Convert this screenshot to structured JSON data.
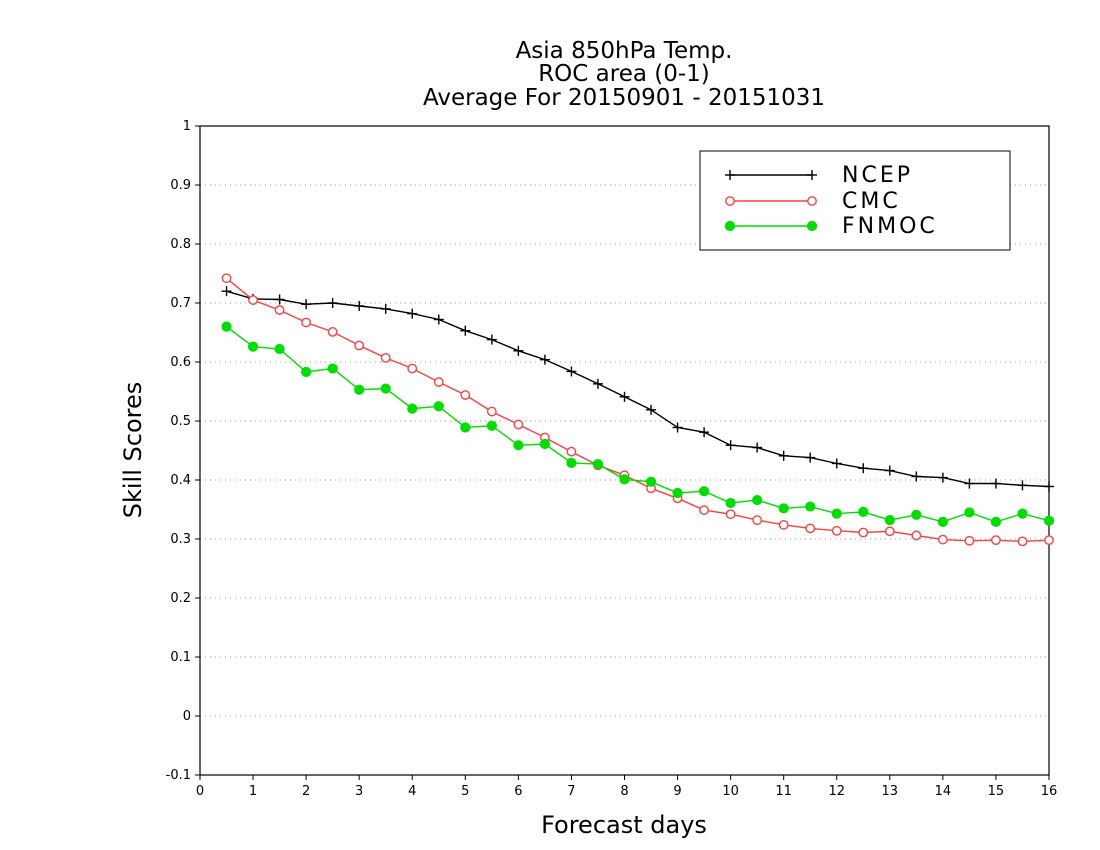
{
  "chart_data": {
    "type": "line",
    "title": [
      "Asia 850hPa Temp.",
      "ROC area (0-1)",
      "Average For 20150901 - 20151031"
    ],
    "xlabel": "Forecast days",
    "ylabel": "Skill Scores",
    "xlim": [
      0,
      16
    ],
    "ylim": [
      -0.1,
      1
    ],
    "xticks": [
      0,
      1,
      2,
      3,
      4,
      5,
      6,
      7,
      8,
      9,
      10,
      11,
      12,
      13,
      14,
      15,
      16
    ],
    "yticks": [
      -0.1,
      0,
      0.1,
      0.2,
      0.3,
      0.4,
      0.5,
      0.6,
      0.7,
      0.8,
      0.9,
      1
    ],
    "ytick_labels": [
      "-0.1",
      "0",
      "0.1",
      "0.2",
      "0.3",
      "0.4",
      "0.5",
      "0.6",
      "0.7",
      "0.8",
      "0.9",
      "1"
    ],
    "grid": "horizontal-dotted",
    "legend_position": "top-right",
    "x": [
      0.5,
      1,
      1.5,
      2,
      2.5,
      3,
      3.5,
      4,
      4.5,
      5,
      5.5,
      6,
      6.5,
      7,
      7.5,
      8,
      8.5,
      9,
      9.5,
      10,
      10.5,
      11,
      11.5,
      12,
      12.5,
      13,
      13.5,
      14,
      14.5,
      15,
      15.5,
      16
    ],
    "series": [
      {
        "name": "NCEP",
        "color": "#000000",
        "marker": "plus",
        "values": [
          0.72,
          0.707,
          0.706,
          0.698,
          0.7,
          0.695,
          0.69,
          0.682,
          0.672,
          0.653,
          0.638,
          0.619,
          0.604,
          0.584,
          0.563,
          0.541,
          0.519,
          0.489,
          0.481,
          0.459,
          0.455,
          0.441,
          0.438,
          0.428,
          0.42,
          0.416,
          0.406,
          0.404,
          0.394,
          0.394,
          0.391,
          0.389
        ]
      },
      {
        "name": "CMC",
        "color": "#ff4040",
        "marker": "open-circle",
        "values": [
          0.742,
          0.705,
          0.688,
          0.667,
          0.651,
          0.628,
          0.607,
          0.589,
          0.566,
          0.544,
          0.516,
          0.494,
          0.472,
          0.448,
          0.425,
          0.408,
          0.386,
          0.369,
          0.349,
          0.342,
          0.332,
          0.324,
          0.318,
          0.314,
          0.311,
          0.313,
          0.306,
          0.299,
          0.297,
          0.298,
          0.296,
          0.298
        ]
      },
      {
        "name": "FNMOC",
        "color": "#00dd00",
        "marker": "filled-circle",
        "values": [
          0.66,
          0.626,
          0.622,
          0.583,
          0.589,
          0.553,
          0.555,
          0.521,
          0.525,
          0.489,
          0.492,
          0.459,
          0.461,
          0.429,
          0.427,
          0.401,
          0.397,
          0.378,
          0.381,
          0.361,
          0.366,
          0.352,
          0.355,
          0.343,
          0.346,
          0.332,
          0.341,
          0.329,
          0.345,
          0.329,
          0.343,
          0.331
        ]
      }
    ]
  }
}
